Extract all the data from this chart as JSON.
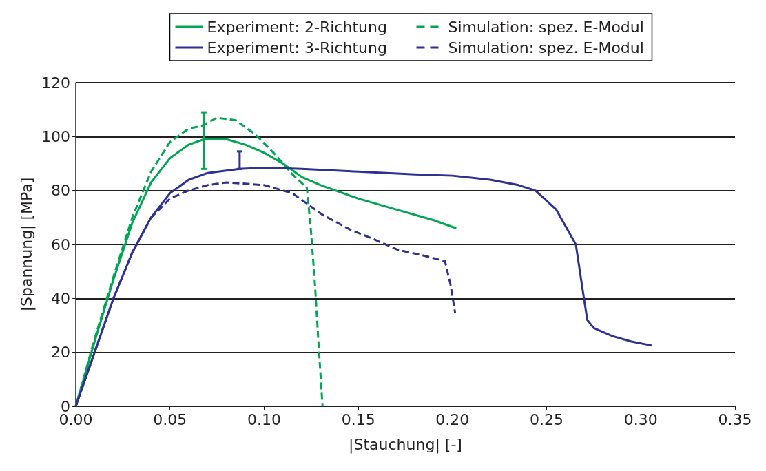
{
  "chart_data": {
    "type": "line",
    "xlabel": "|Stauchung| [-]",
    "ylabel": "|Spannung| [MPa]",
    "xlim": [
      0,
      0.35
    ],
    "xticks": [
      {
        "value": 0,
        "label": "0.00"
      },
      {
        "value": 0.05,
        "label": "0.05"
      },
      {
        "value": 0.1,
        "label": "0.10"
      },
      {
        "value": 0.15,
        "label": "0.15"
      },
      {
        "value": 0.2,
        "label": "0.20"
      },
      {
        "value": 0.25,
        "label": "0.25"
      },
      {
        "value": 0.3,
        "label": "0.30"
      },
      {
        "value": 0.35,
        "label": "0.35"
      }
    ],
    "ylim": [
      0,
      120
    ],
    "yticks": [
      0,
      20,
      40,
      60,
      80,
      100,
      120
    ],
    "grid": "y",
    "legend": "top",
    "marker": "none",
    "series": [
      {
        "name": "Experiment: 2-Richtung",
        "color": "#00a651",
        "line_style": "solid",
        "x": [
          0,
          0.01,
          0.02,
          0.03,
          0.04,
          0.05,
          0.06,
          0.068,
          0.08,
          0.09,
          0.1,
          0.11,
          0.12,
          0.13,
          0.15,
          0.17,
          0.19,
          0.202
        ],
        "values": [
          0,
          24,
          47,
          68,
          83,
          92,
          97,
          99,
          99,
          97,
          94,
          90,
          85,
          82,
          77,
          73,
          69,
          66
        ],
        "errors": [
          null,
          null,
          null,
          null,
          null,
          null,
          null,
          [
            88,
            109
          ],
          null,
          null,
          null,
          null,
          null,
          null,
          null,
          null,
          null,
          null
        ]
      },
      {
        "name": "Simulation: spez. E-Modul",
        "color": "#00a651",
        "line_style": "dashed",
        "x": [
          0,
          0.01,
          0.02,
          0.03,
          0.04,
          0.05,
          0.06,
          0.067,
          0.075,
          0.085,
          0.095,
          0.105,
          0.115,
          0.1227,
          0.125,
          0.127,
          0.129,
          0.131
        ],
        "values": [
          0,
          25,
          48,
          70,
          87,
          98,
          103,
          104,
          107,
          106,
          101,
          94,
          86,
          81,
          64,
          45,
          22,
          0
        ]
      },
      {
        "name": "Experiment: 3-Richtung",
        "color": "#2e3192",
        "line_style": "solid",
        "x": [
          0,
          0.01,
          0.02,
          0.03,
          0.04,
          0.05,
          0.06,
          0.07,
          0.087,
          0.1,
          0.12,
          0.15,
          0.18,
          0.2,
          0.22,
          0.235,
          0.244,
          0.255,
          0.2655,
          0.2698,
          0.2716,
          0.275,
          0.285,
          0.295,
          0.306
        ],
        "values": [
          0,
          20,
          40,
          57,
          70,
          79,
          84,
          86.5,
          88,
          88.5,
          88,
          87,
          86,
          85.5,
          84,
          82,
          80,
          73,
          60,
          40,
          32,
          29,
          26,
          24,
          22.5
        ],
        "errors": [
          null,
          null,
          null,
          null,
          null,
          null,
          null,
          null,
          [
            88,
            94.5
          ],
          null,
          null,
          null,
          null,
          null,
          null,
          null,
          null,
          null,
          null,
          null,
          null,
          null,
          null,
          null,
          null
        ]
      },
      {
        "name": "Simulation: spez. E-Modul",
        "color": "#2e3192",
        "line_style": "dashed",
        "x": [
          0,
          0.02,
          0.03,
          0.04,
          0.05,
          0.06,
          0.07,
          0.08,
          0.1,
          0.115,
          0.131,
          0.146,
          0.158,
          0.171,
          0.184,
          0.196,
          0.199,
          0.2014
        ],
        "values": [
          0,
          40,
          57,
          70,
          77,
          80,
          82,
          83,
          82,
          79,
          71,
          65.4,
          62,
          58,
          56,
          53.8,
          45,
          34.6
        ]
      }
    ]
  }
}
